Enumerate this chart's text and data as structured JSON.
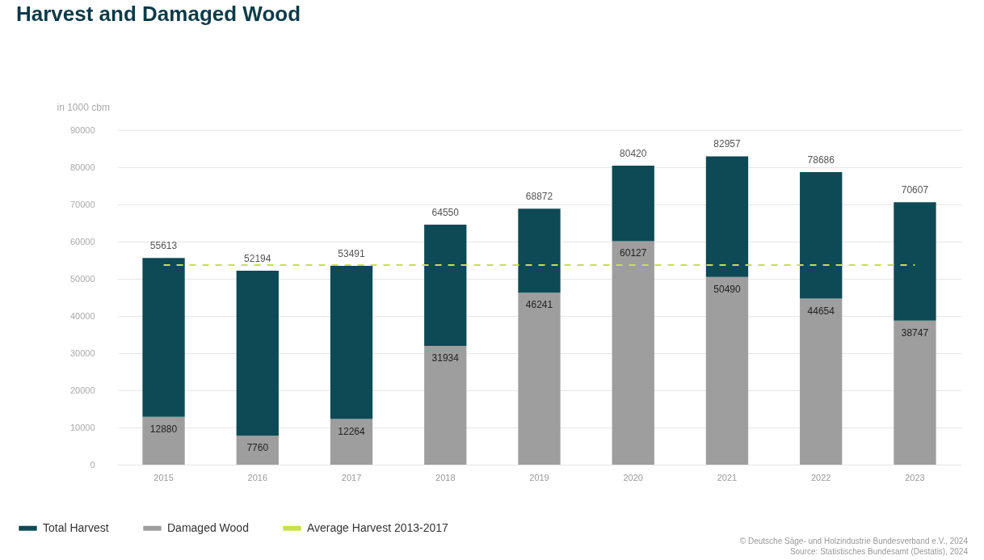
{
  "chart_data": {
    "type": "bar",
    "title": "Harvest and Damaged Wood",
    "ylabel": "in 1000 cbm",
    "categories": [
      "2015",
      "2016",
      "2017",
      "2018",
      "2019",
      "2020",
      "2021",
      "2022",
      "2023"
    ],
    "stacked": true,
    "series": [
      {
        "name": "Damaged Wood",
        "color": "#9e9e9e",
        "values": [
          12880,
          7760,
          12264,
          31934,
          46241,
          60127,
          50490,
          44654,
          38747
        ],
        "value_labels": [
          "12880",
          "7760",
          "12264",
          "31934",
          "46241",
          "60127",
          "50490",
          "44654",
          "38747"
        ]
      },
      {
        "name": "Total Harvest",
        "color": "#0d4a55",
        "values": [
          42733,
          44434,
          41227,
          32616,
          22631,
          20293,
          32467,
          34032,
          31860
        ]
      }
    ],
    "totals": [
      "55613",
      "52194",
      "53491",
      "64550",
      "68872",
      "80420",
      "82957",
      "78686",
      "70607"
    ],
    "ylim": [
      0,
      90000
    ],
    "yticks": [
      0,
      10000,
      20000,
      30000,
      40000,
      50000,
      60000,
      70000,
      80000,
      90000
    ],
    "grid": "y",
    "legend": "bottom left",
    "ref_lines": [
      {
        "axis": "y",
        "value": 53700,
        "label": "Average Harvest 2013-2017",
        "color": "#c8e04a",
        "line_style": "dashed"
      }
    ],
    "annotations": [
      "© Deutsche Säge- und Holzindustrie Bundesverband e.V., 2024",
      "Source: Statistisches Bundesamt (Destatis), 2024"
    ]
  }
}
